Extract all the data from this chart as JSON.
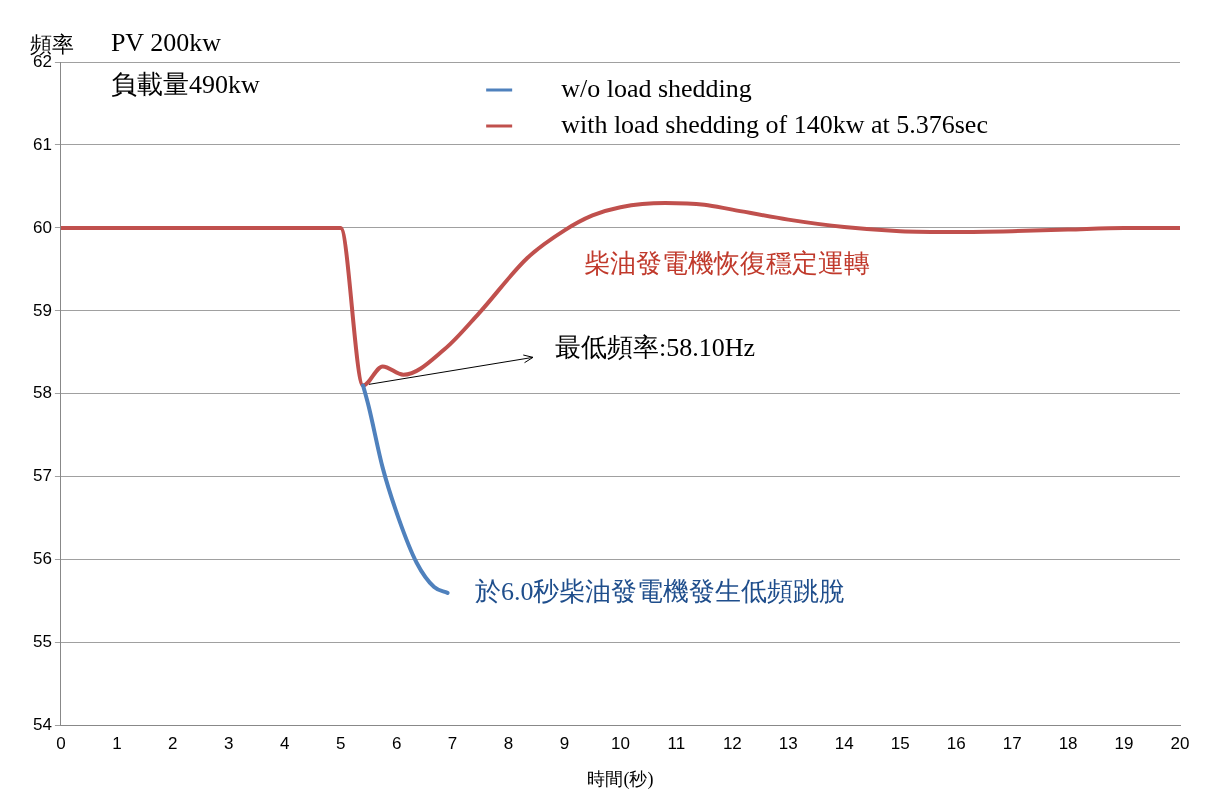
{
  "chart_data": {
    "type": "line",
    "xlabel": "時間(秒)",
    "ylabel": "頻率",
    "xlim": [
      0,
      20
    ],
    "xticks": [
      0,
      1,
      2,
      3,
      4,
      5,
      6,
      7,
      8,
      9,
      10,
      11,
      12,
      13,
      14,
      15,
      16,
      17,
      18,
      19,
      20
    ],
    "ylim": [
      54,
      62
    ],
    "yticks": [
      54,
      55,
      56,
      57,
      58,
      59,
      60,
      61,
      62
    ],
    "grid": "y",
    "legend": "top",
    "marker": "none",
    "line_style": "solid",
    "series": [
      {
        "name": "w/o load shedding",
        "color": "#4f81bd",
        "x": [
          5.4,
          5.5,
          5.75,
          6.04,
          6.36,
          6.67,
          6.91
        ],
        "values": [
          58.1,
          57.85,
          57.11,
          56.49,
          55.96,
          55.67,
          55.6
        ]
      },
      {
        "name": "with load shedding of 140kw at 5.376sec",
        "color": "#c0504d",
        "x": [
          0,
          5,
          5.4,
          5.75,
          6.12,
          6.86,
          7.47,
          8.34,
          9,
          9.5,
          10,
          10.8,
          11.5,
          12,
          13,
          14,
          15,
          16,
          17,
          18,
          19,
          20
        ],
        "values": [
          60,
          60,
          58.1,
          58.33,
          58.23,
          58.54,
          58.97,
          59.64,
          59.97,
          60.15,
          60.25,
          60.3,
          60.28,
          60.22,
          60.1,
          60.01,
          59.96,
          59.95,
          59.96,
          59.98,
          60,
          60
        ]
      }
    ],
    "annotations": [
      "PV 200kw",
      "負載量490kw",
      {
        "text": "最低頻率:58.10Hz",
        "x": 5.4,
        "y": 58.1
      },
      "柴油發電機恢復穩定運轉",
      "於6.0秒柴油發電機發生低頻跳脫"
    ]
  }
}
